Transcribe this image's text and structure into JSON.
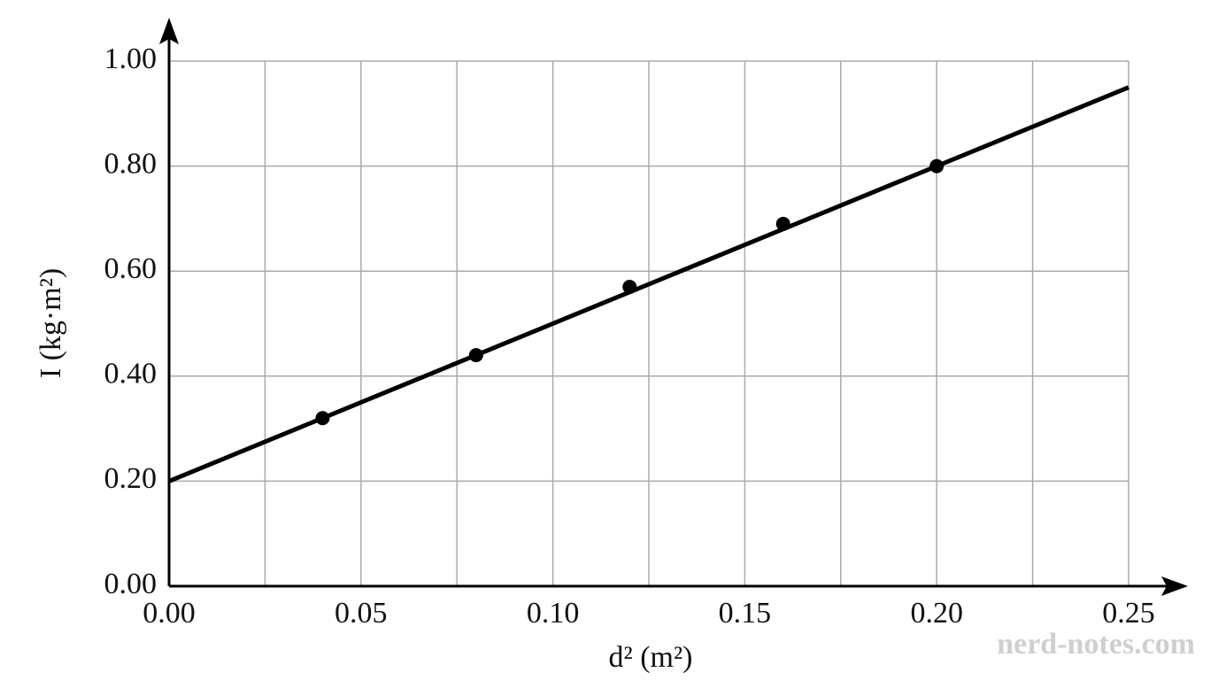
{
  "chart_data": {
    "type": "scatter",
    "x_label": "d² (m²)",
    "y_label": "I (kg·m²)",
    "watermark": "nerd-notes.com",
    "x": [
      0.04,
      0.08,
      0.12,
      0.16,
      0.2
    ],
    "values": [
      0.32,
      0.44,
      0.57,
      0.69,
      0.8
    ],
    "color": "#000000",
    "fit": {
      "x": [
        0,
        0.25
      ],
      "y": [
        0.2,
        0.95
      ],
      "color": "#000000"
    },
    "xlim": [
      0,
      0.25
    ],
    "ylim": [
      0,
      1.0
    ],
    "xticks": [
      {
        "value": 0,
        "label": "0.00"
      },
      {
        "value": 0.05,
        "label": "0.05"
      },
      {
        "value": 0.1,
        "label": "0.10"
      },
      {
        "value": 0.15,
        "label": "0.15"
      },
      {
        "value": 0.2,
        "label": "0.20"
      },
      {
        "value": 0.25,
        "label": "0.25"
      }
    ],
    "x_minor_ticks": [
      0.025,
      0.075,
      0.125,
      0.175,
      0.225
    ],
    "yticks": [
      {
        "value": 0,
        "label": "0.00"
      },
      {
        "value": 0.2,
        "label": "0.20"
      },
      {
        "value": 0.4,
        "label": "0.40"
      },
      {
        "value": 0.6,
        "label": "0.60"
      },
      {
        "value": 0.8,
        "label": "0.80"
      },
      {
        "value": 1.0,
        "label": "1.00"
      }
    ],
    "grid": true
  }
}
